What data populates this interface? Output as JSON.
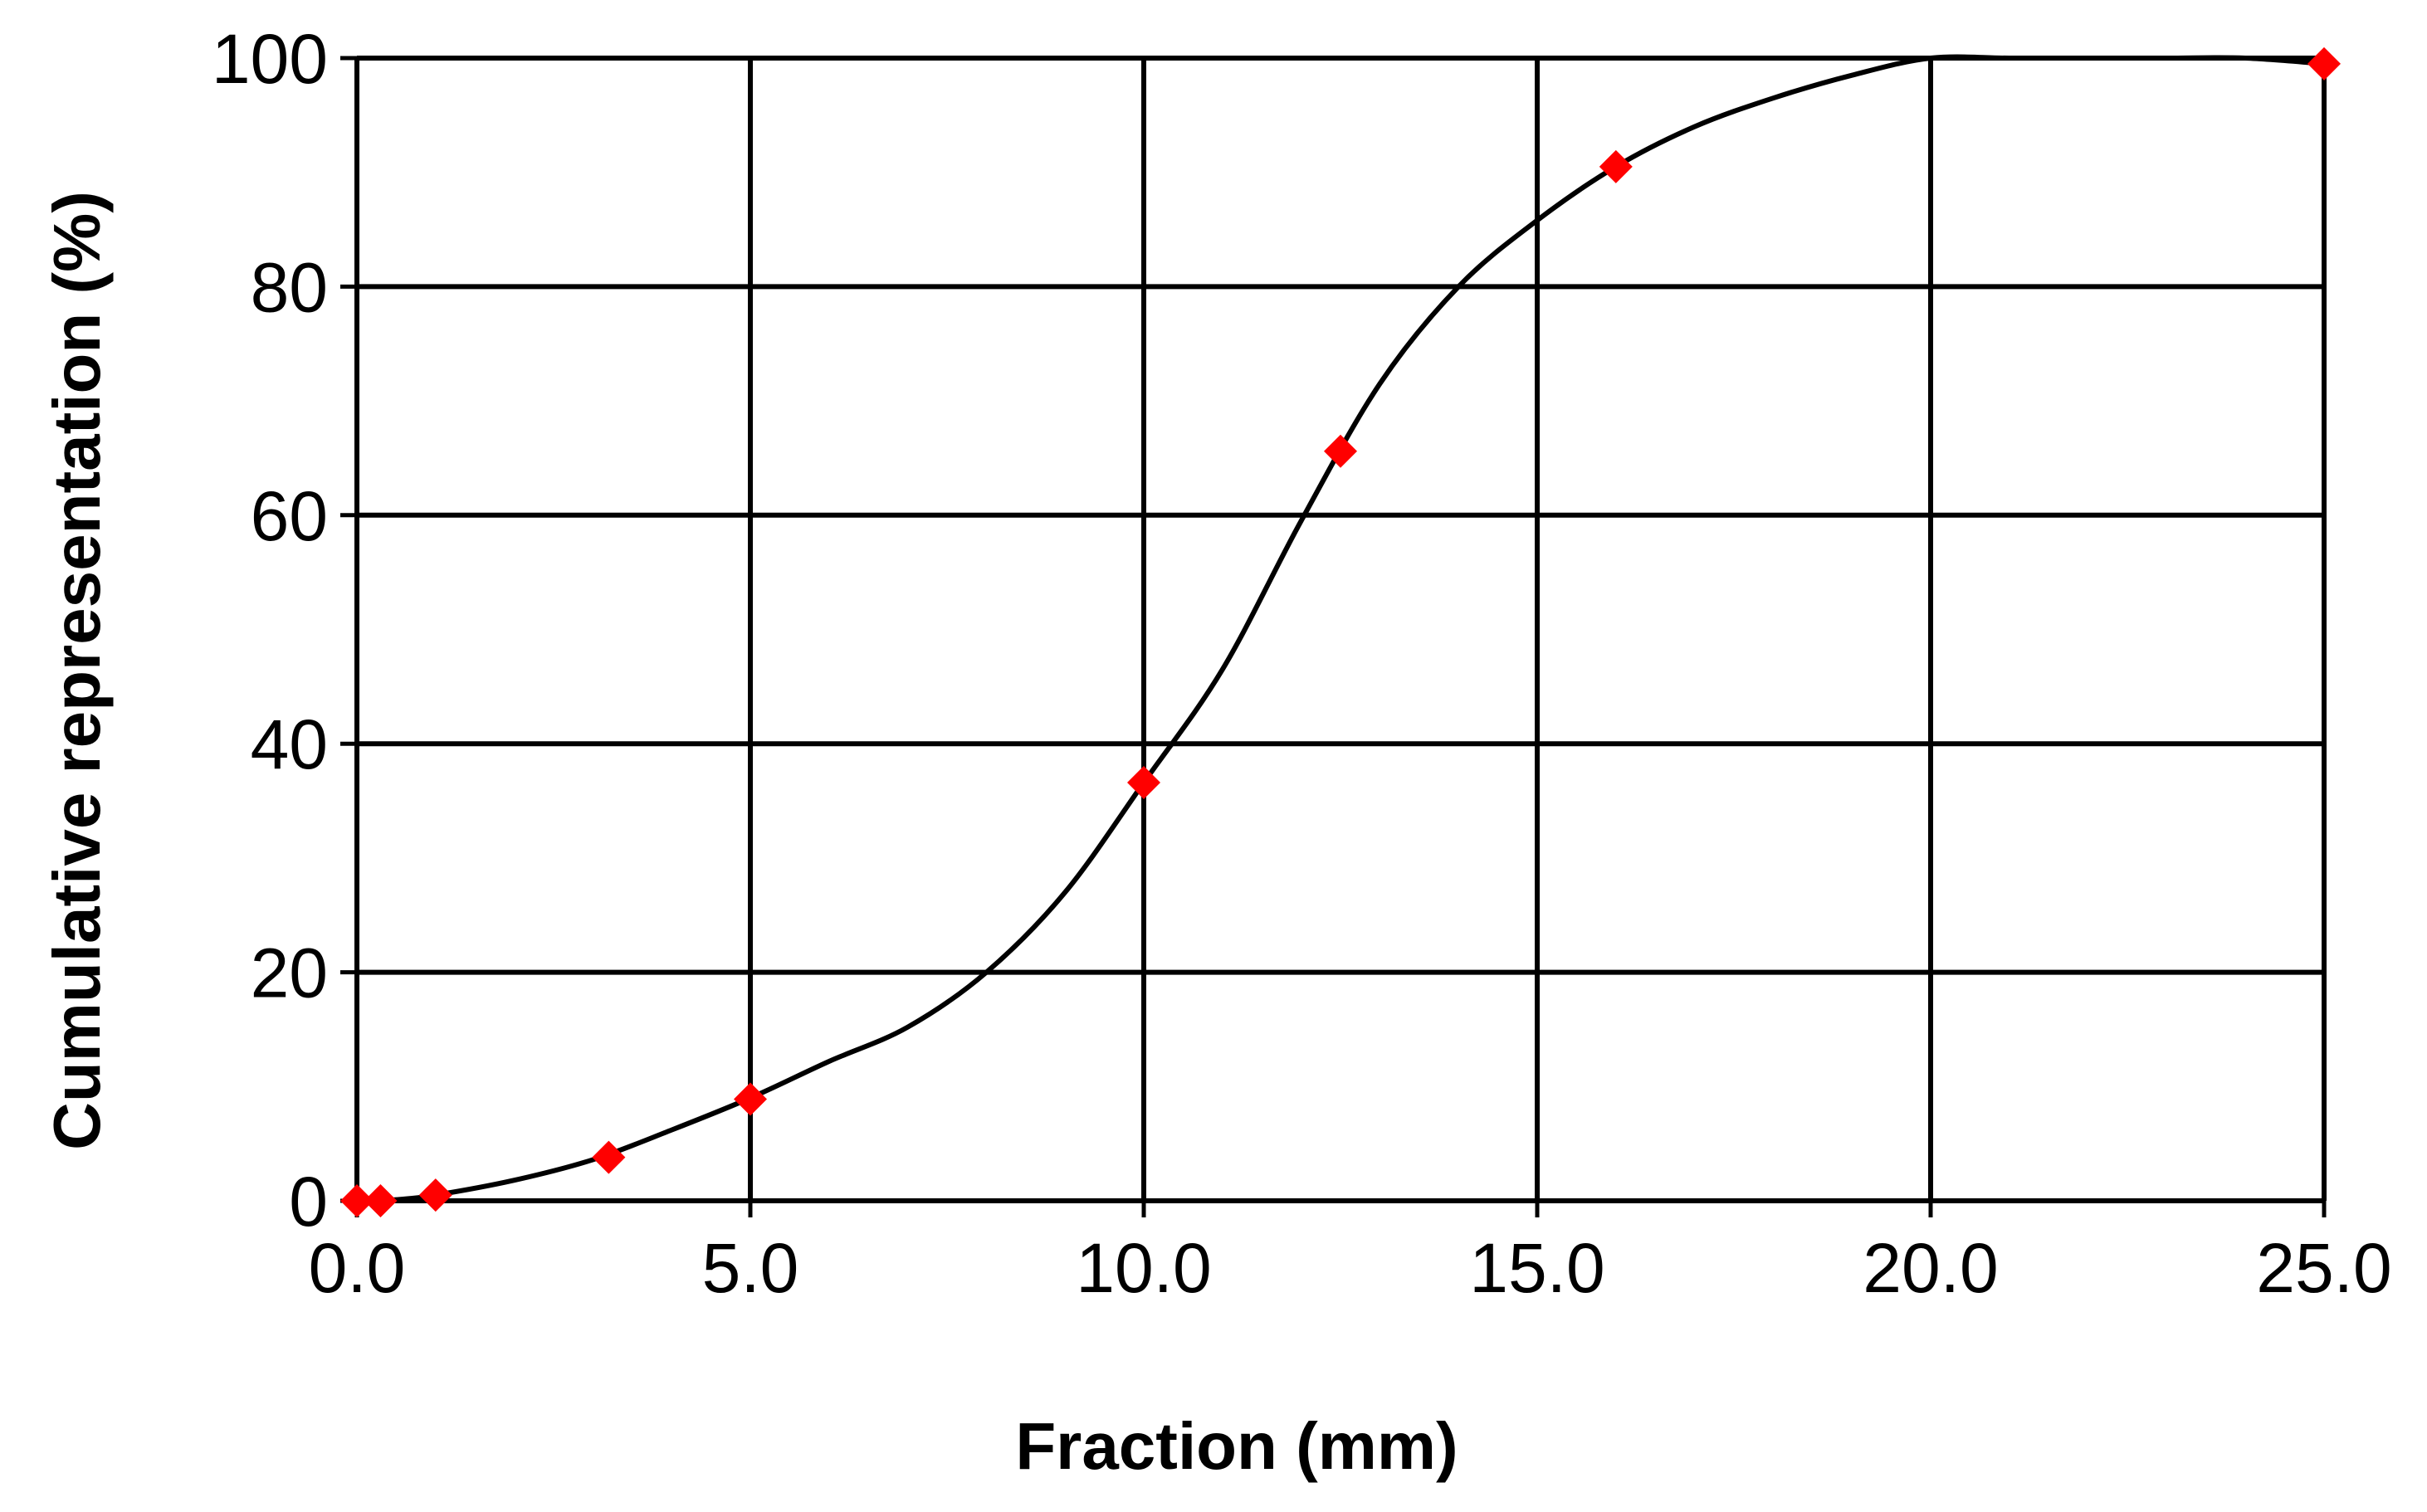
{
  "chart_data": {
    "type": "scatter",
    "title": "",
    "xlabel": "Fraction (mm)",
    "ylabel": "Cumulative representation (%)",
    "xlim": [
      0,
      25
    ],
    "ylim": [
      0,
      100
    ],
    "x_ticks": [
      "0.0",
      "5.0",
      "10.0",
      "15.0",
      "20.0",
      "25.0"
    ],
    "y_ticks": [
      "0",
      "20",
      "40",
      "60",
      "80",
      "100"
    ],
    "grid": true,
    "legend": "none",
    "colors": {
      "marker": "#ff0000",
      "curve": "#000000",
      "grid": "#000000"
    },
    "series": [
      {
        "marker": "diamond",
        "x": [
          0.0,
          0.3,
          1.0,
          3.2,
          5.0,
          10.0,
          12.5,
          16.0,
          25.0
        ],
        "y": [
          0.0,
          0.0,
          0.5,
          3.8,
          8.9,
          36.6,
          65.6,
          90.5,
          99.5
        ]
      }
    ],
    "curve": {
      "style": "smooth",
      "x": [
        0.0,
        0.5,
        1.0,
        2.0,
        3.0,
        4.0,
        5.0,
        6.0,
        7.0,
        8.0,
        9.0,
        10.0,
        11.0,
        12.0,
        13.0,
        14.0,
        15.0,
        16.0,
        17.0,
        18.0,
        19.0,
        20.0,
        21.0,
        22.0,
        23.0,
        24.0,
        25.0
      ],
      "y": [
        0.0,
        0.1,
        0.5,
        1.8,
        3.6,
        6.2,
        9.0,
        12.2,
        15.2,
        20.0,
        27.0,
        36.6,
        46.5,
        59.5,
        71.5,
        80.0,
        85.8,
        90.5,
        94.0,
        96.5,
        98.5,
        100.0,
        100.0,
        100.0,
        100.0,
        100.0,
        99.5
      ]
    }
  }
}
